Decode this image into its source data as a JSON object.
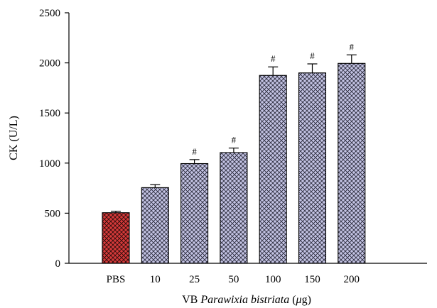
{
  "chart_data": {
    "type": "bar",
    "categories": [
      "PBS",
      "10",
      "25",
      "50",
      "100",
      "150",
      "200"
    ],
    "values": [
      505,
      755,
      995,
      1105,
      1875,
      1900,
      1995
    ],
    "errors": [
      15,
      30,
      40,
      45,
      85,
      90,
      85
    ],
    "annotations": [
      "",
      "",
      "#",
      "#",
      "#",
      "#",
      "#"
    ],
    "bar_colors": [
      "#d63a3a",
      "#b8b8dc",
      "#b8b8dc",
      "#b8b8dc",
      "#b8b8dc",
      "#b8b8dc",
      "#b8b8dc"
    ],
    "pattern": "crosshatch",
    "ylim": [
      0,
      2500
    ],
    "yticks": [
      0,
      500,
      1000,
      1500,
      2000,
      2500
    ],
    "ylabel": "CK (U/L)",
    "xlabel_prefix": "VB ",
    "xlabel_italic": "Parawixia bistriata",
    "xlabel_suffix": " (",
    "xlabel_unit_italic": "μ",
    "xlabel_unit_rest": "g)",
    "grid": false
  }
}
